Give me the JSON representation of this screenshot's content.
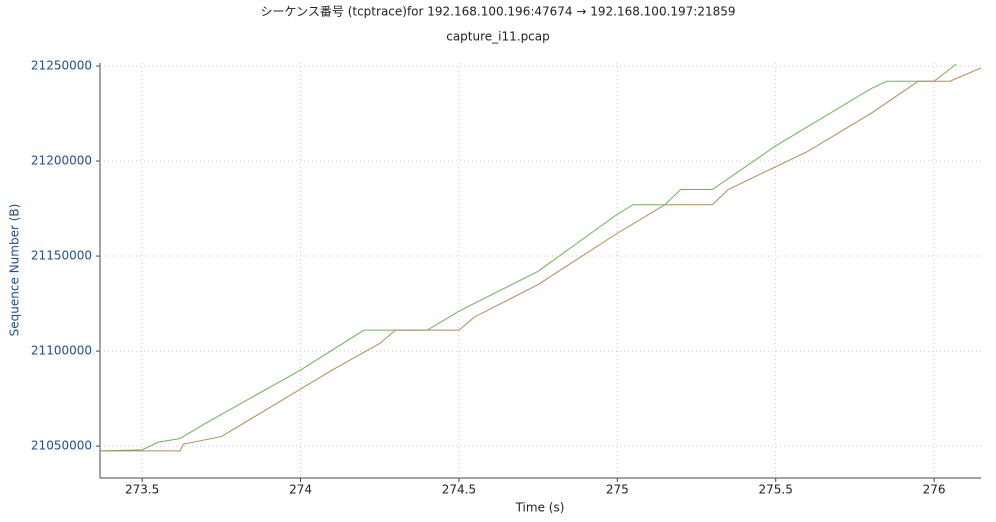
{
  "chart_data": {
    "type": "line",
    "title": "シーケンス番号 (tcptrace)for 192.168.100.196:47674 → 192.168.100.197:21859",
    "subtitle": "capture_i11.pcap",
    "x_label": "Time (s)",
    "y_label": "Sequence Number (B)",
    "xlim": [
      273.367,
      276.148
    ],
    "xticks": [
      273.5,
      274,
      274.5,
      275,
      275.5,
      276
    ],
    "ylim": [
      21033200,
      21251600
    ],
    "yticks": [
      21050000,
      21100000,
      21150000,
      21200000,
      21250000
    ],
    "grid": true,
    "series": [
      {
        "color": "#70b05a",
        "x": [
          273.367,
          273.5,
          273.55,
          273.62,
          273.7,
          274.0,
          274.2,
          274.4,
          274.5,
          274.75,
          275.0,
          275.05,
          275.15,
          275.2,
          275.3,
          275.5,
          275.8,
          275.85,
          276.0,
          276.07
        ],
        "values": [
          21047500,
          21048000,
          21052000,
          21054000,
          21062000,
          21090000,
          21111000,
          21111000,
          21121000,
          21142000,
          21172000,
          21177000,
          21177000,
          21185000,
          21185000,
          21208000,
          21238000,
          21242000,
          21242000,
          21251000
        ]
      },
      {
        "color": "#b08a5a",
        "x": [
          273.367,
          273.62,
          273.63,
          273.75,
          273.9,
          274.1,
          274.25,
          274.3,
          274.5,
          274.55,
          274.75,
          275.0,
          275.15,
          275.3,
          275.35,
          275.6,
          275.8,
          275.95,
          276.05,
          276.148
        ],
        "values": [
          21047500,
          21047500,
          21051000,
          21055000,
          21070000,
          21090000,
          21104000,
          21111000,
          21111000,
          21118000,
          21135000,
          21162000,
          21177000,
          21177000,
          21185000,
          21205000,
          21225000,
          21242000,
          21242000,
          21249000
        ]
      }
    ]
  }
}
